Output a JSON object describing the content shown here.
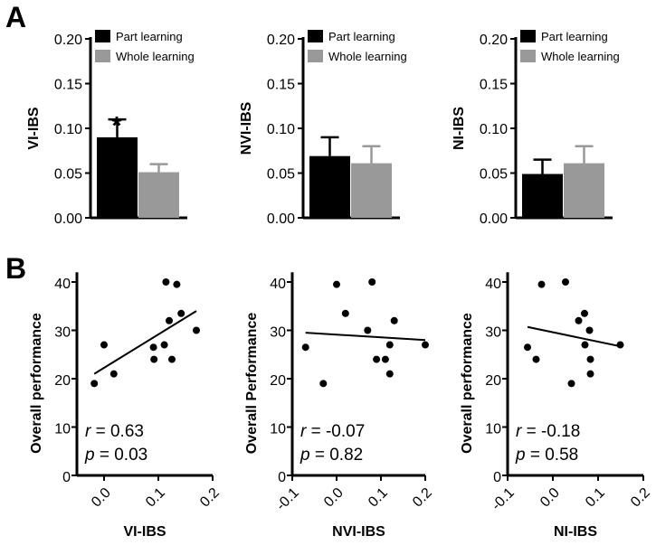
{
  "panel_labels": [
    "A",
    "B"
  ],
  "chart_data": [
    {
      "type": "bar",
      "ylabel": "VI-IBS",
      "ylim": [
        0,
        0.2
      ],
      "yticks": [
        "0.00",
        "0.05",
        "0.10",
        "0.15",
        "0.20"
      ],
      "series": [
        {
          "name": "Part learning",
          "value": 0.09,
          "error": 0.02,
          "color": "#000000"
        },
        {
          "name": "Whole learning",
          "value": 0.051,
          "error": 0.009,
          "color": "#999999"
        }
      ],
      "annotation": "*",
      "legend": "top-right"
    },
    {
      "type": "bar",
      "ylabel": "NVI-IBS",
      "ylim": [
        0,
        0.2
      ],
      "yticks": [
        "0.00",
        "0.05",
        "0.10",
        "0.15",
        "0.20"
      ],
      "series": [
        {
          "name": "Part learning",
          "value": 0.069,
          "error": 0.021,
          "color": "#000000"
        },
        {
          "name": "Whole learning",
          "value": 0.061,
          "error": 0.019,
          "color": "#999999"
        }
      ],
      "legend": "top-right"
    },
    {
      "type": "bar",
      "ylabel": "NI-IBS",
      "ylim": [
        0,
        0.2
      ],
      "yticks": [
        "0.00",
        "0.05",
        "0.10",
        "0.15",
        "0.20"
      ],
      "series": [
        {
          "name": "Part learning",
          "value": 0.049,
          "error": 0.016,
          "color": "#000000"
        },
        {
          "name": "Whole learning",
          "value": 0.061,
          "error": 0.019,
          "color": "#999999"
        }
      ],
      "legend": "top-right"
    },
    {
      "type": "scatter",
      "xlabel": "VI-IBS",
      "ylabel": "Overall performance",
      "xlim": [
        -0.05,
        0.2
      ],
      "ylim": [
        0,
        42
      ],
      "xticks": [
        "0.0",
        "0.1",
        "0.2"
      ],
      "yticks": [
        "0",
        "10",
        "20",
        "30",
        "40"
      ],
      "points": [
        [
          -0.018,
          19
        ],
        [
          0.0,
          27
        ],
        [
          0.018,
          21
        ],
        [
          0.091,
          26.5
        ],
        [
          0.092,
          24
        ],
        [
          0.111,
          27
        ],
        [
          0.114,
          40
        ],
        [
          0.12,
          32
        ],
        [
          0.125,
          24
        ],
        [
          0.134,
          39.5
        ],
        [
          0.142,
          33.5
        ],
        [
          0.17,
          30
        ]
      ],
      "fit": [
        [
          -0.018,
          21
        ],
        [
          0.17,
          34
        ]
      ],
      "r_text": "r",
      "r_value": " = 0.63",
      "p_text": "p",
      "p_value": " = 0.03"
    },
    {
      "type": "scatter",
      "xlabel": "NVI-IBS",
      "ylabel": "Overall Performance",
      "xlim": [
        -0.1,
        0.2
      ],
      "ylim": [
        0,
        42
      ],
      "xticks": [
        "-0.1",
        "0.0",
        "0.1",
        "0.2"
      ],
      "yticks": [
        "0",
        "10",
        "20",
        "30",
        "40"
      ],
      "points": [
        [
          -0.07,
          26.5
        ],
        [
          -0.03,
          19
        ],
        [
          0.0,
          39.5
        ],
        [
          0.02,
          33.5
        ],
        [
          0.07,
          30
        ],
        [
          0.08,
          40
        ],
        [
          0.09,
          24
        ],
        [
          0.11,
          24
        ],
        [
          0.12,
          27
        ],
        [
          0.12,
          21
        ],
        [
          0.13,
          32
        ],
        [
          0.2,
          27
        ]
      ],
      "fit": [
        [
          -0.07,
          29.5
        ],
        [
          0.2,
          28
        ]
      ],
      "r_text": "r",
      "r_value": " = -0.07",
      "p_text": "p",
      "p_value": " = 0.82"
    },
    {
      "type": "scatter",
      "xlabel": "NI-IBS",
      "ylabel": "Overall performance",
      "xlim": [
        -0.1,
        0.2
      ],
      "ylim": [
        0,
        42
      ],
      "xticks": [
        "-0.1",
        "0.0",
        "0.1",
        "0.2"
      ],
      "yticks": [
        "0",
        "10",
        "20",
        "30",
        "40"
      ],
      "points": [
        [
          -0.056,
          26.5
        ],
        [
          -0.037,
          24
        ],
        [
          -0.025,
          39.5
        ],
        [
          0.028,
          40
        ],
        [
          0.041,
          19
        ],
        [
          0.057,
          32
        ],
        [
          0.07,
          33.5
        ],
        [
          0.071,
          27
        ],
        [
          0.081,
          30
        ],
        [
          0.083,
          24
        ],
        [
          0.083,
          21
        ],
        [
          0.149,
          27
        ]
      ],
      "fit": [
        [
          -0.056,
          30.7
        ],
        [
          0.149,
          26.7
        ]
      ],
      "r_text": "r",
      "r_value": " = -0.18",
      "p_text": "p",
      "p_value": " = 0.58"
    }
  ]
}
